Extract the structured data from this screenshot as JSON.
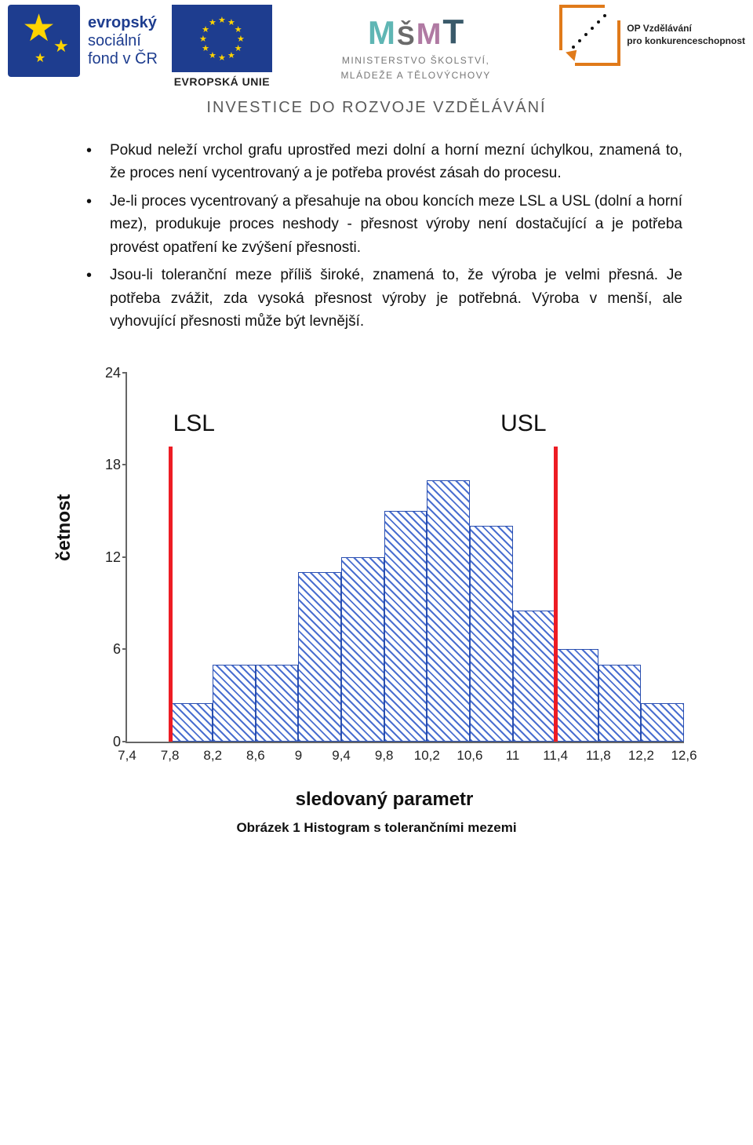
{
  "header": {
    "esf": {
      "line1": "evropský",
      "line2": "sociální",
      "line3": "fond v ČR"
    },
    "eu_label": "EVROPSKÁ UNIE",
    "msmt": {
      "line1": "MINISTERSTVO ŠKOLSTVÍ,",
      "line2": "MLÁDEŽE A TĚLOVÝCHOVY"
    },
    "opvk": {
      "line1": "OP Vzdělávání",
      "line2": "pro konkurenceschopnost"
    },
    "tagline": "INVESTICE DO ROZVOJE VZDĚLÁVÁNÍ"
  },
  "bullets": [
    "Pokud neleží vrchol grafu uprostřed mezi dolní a horní mezní úchylkou, znamená to, že proces není vycentrovaný a je potřeba provést zásah do procesu.",
    "Je-li proces vycentrovaný a přesahuje na obou koncích meze LSL a USL (dolní a horní mez), produkuje proces neshody - přesnost výroby není dostačující a je potřeba provést opatření ke zvýšení přesnosti.",
    "Jsou-li toleranční meze příliš široké, znamená to, že výroba je velmi přesná. Je potřeba zvážit, zda vysoká přesnost výroby je potřebná. Výroba v menší, ale vyhovující přesnosti může být levnější."
  ],
  "chart": {
    "type": "histogram",
    "y_label": "četnost",
    "x_label": "sledovaný parametr",
    "ylim": [
      0,
      24
    ],
    "ytick_step": 6,
    "yticks": [
      0,
      6,
      12,
      18,
      24
    ],
    "xticks": [
      "7,4",
      "7,8",
      "8,2",
      "8,6",
      "9",
      "9,4",
      "9,8",
      "10,2",
      "10,6",
      "11",
      "11,4",
      "11,8",
      "12,2",
      "12,6"
    ],
    "x_start": 7.4,
    "x_step": 0.4,
    "bars": [
      {
        "x": 7.8,
        "value": 2.5
      },
      {
        "x": 8.2,
        "value": 5
      },
      {
        "x": 8.6,
        "value": 5
      },
      {
        "x": 9.0,
        "value": 11
      },
      {
        "x": 9.4,
        "value": 12
      },
      {
        "x": 9.8,
        "value": 15
      },
      {
        "x": 10.2,
        "value": 17
      },
      {
        "x": 10.6,
        "value": 14
      },
      {
        "x": 11.0,
        "value": 8.5
      },
      {
        "x": 11.4,
        "value": 6
      },
      {
        "x": 11.8,
        "value": 5
      },
      {
        "x": 12.2,
        "value": 2.5
      }
    ],
    "bar_width_units": 0.4,
    "bar_border_color": "#2a4fb0",
    "bar_hatch_color": "#4a6fd0",
    "background_color": "#ffffff",
    "axis_color": "#666666",
    "limits": {
      "lsl": {
        "x": 7.8,
        "label": "LSL",
        "color": "#ed1c24"
      },
      "usl": {
        "x": 11.4,
        "label": "USL",
        "color": "#ed1c24"
      }
    },
    "limit_height_fraction": 0.8,
    "label_fontsize": 24,
    "tick_fontsize": 18,
    "limit_label_fontsize": 30
  },
  "caption": "Obrázek 1 Histogram s tolerančními mezemi"
}
